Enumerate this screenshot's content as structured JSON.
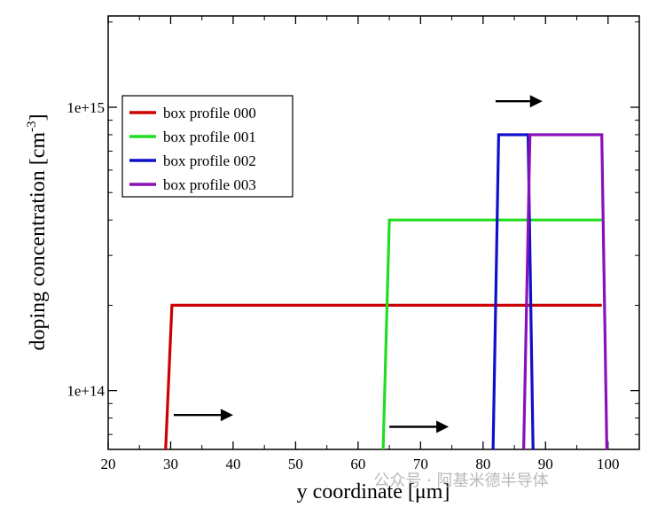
{
  "chart_data": {
    "type": "line",
    "xlabel": "y coordinate [μm]",
    "ylabel": "doping concentration [cm",
    "ylabel_superscript": "-3",
    "xlim": [
      20,
      105
    ],
    "ylim": [
      62000000000000.0,
      2100000000000000.0
    ],
    "yscale": "log",
    "x_ticks": [
      20,
      30,
      40,
      50,
      60,
      70,
      80,
      90,
      100
    ],
    "x_tick_labels": [
      "20",
      "30",
      "40",
      "50",
      "60",
      "70",
      "80",
      "90",
      "100"
    ],
    "y_ticks": [
      100000000000000.0,
      1000000000000000.0
    ],
    "y_tick_labels": [
      "1e+14",
      "1e+15"
    ],
    "grid": false,
    "legend_position": "top-left",
    "series": [
      {
        "name": "box profile 000",
        "color": "#cc0000",
        "x": [
          29.2,
          30.2,
          99.0
        ],
        "y": [
          62000000000000.0,
          200000000000000.0,
          200000000000000.0
        ]
      },
      {
        "name": "box profile 001",
        "color": "#22dd22",
        "x": [
          64.0,
          65.0,
          99.0
        ],
        "y": [
          62000000000000.0,
          400000000000000.0,
          400000000000000.0
        ]
      },
      {
        "name": "box profile 002",
        "color": "#1010cc",
        "x": [
          81.6,
          82.5,
          87.2,
          88.0
        ],
        "y": [
          62000000000000.0,
          800000000000000.0,
          800000000000000.0,
          62000000000000.0
        ]
      },
      {
        "name": "box profile 003",
        "color": "#8a10b8",
        "x": [
          86.5,
          87.5,
          99.0,
          99.8
        ],
        "y": [
          62000000000000.0,
          800000000000000.0,
          800000000000000.0,
          62000000000000.0
        ]
      }
    ],
    "arrows": [
      {
        "x_start": 30.5,
        "x_end": 40.0,
        "y": 82000000000000.0
      },
      {
        "x_start": 65.0,
        "x_end": 74.5,
        "y": 74500000000000.0
      },
      {
        "x_start": 82.0,
        "x_end": 89.5,
        "y": 1050000000000000.0
      }
    ]
  },
  "watermark": "公众号 · 阿基米德半导体"
}
